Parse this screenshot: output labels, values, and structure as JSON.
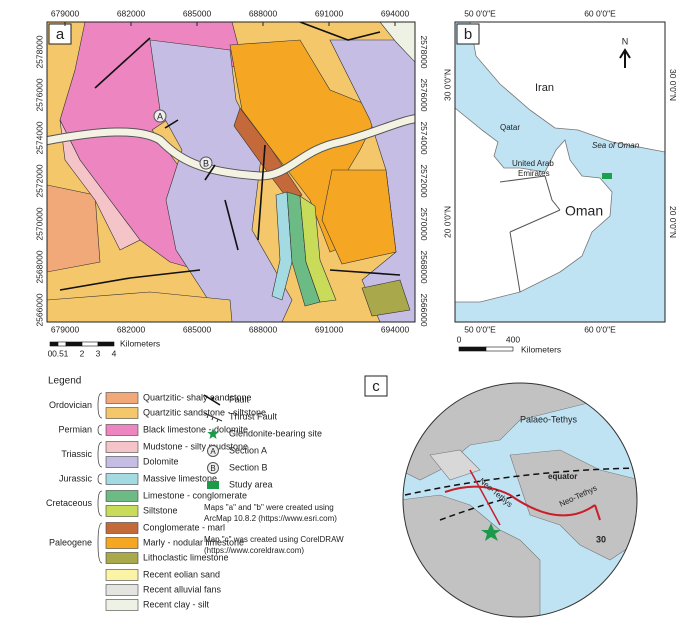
{
  "panel_a": {
    "label": "a",
    "x_ticks": [
      679000,
      682000,
      685000,
      688000,
      691000,
      694000
    ],
    "y_ticks": [
      2578000,
      2576000,
      2574000,
      2572000,
      2570000,
      2568000,
      2566000
    ],
    "sections": [
      "A",
      "B"
    ],
    "scale": {
      "ticks": [
        "0",
        "0.5",
        "1",
        "2",
        "3",
        "4"
      ],
      "unit": "Kilometers"
    }
  },
  "panel_b": {
    "label": "b",
    "lon_ticks": [
      "50 0'0\"E",
      "60 0'0\"E"
    ],
    "lat_ticks": [
      "30 0'0\"N",
      "20 0'0\"N"
    ],
    "north": "N",
    "places": {
      "iran": "Iran",
      "qatar": "Qatar",
      "uae": [
        "United Arab",
        "Emirates"
      ],
      "sea": "Sea of Oman",
      "oman": "Oman"
    },
    "scale": {
      "ticks": [
        "0",
        "400"
      ],
      "unit": "Kilometers"
    }
  },
  "panel_c": {
    "label": "c",
    "labels": {
      "palaeo": "Palaeo-Tethys",
      "equator": "equator",
      "neo1": "Neo-Tethys",
      "neo2": "Neo-Tethys",
      "lat": "30"
    }
  },
  "legend": {
    "title": "Legend",
    "groups": [
      {
        "period": "Ordovician",
        "items": [
          {
            "name": "Quartzitic- shaly sandstone",
            "color": "#f2a97a"
          },
          {
            "name": "Quartzitic sandstone - siltstone",
            "color": "#f5c76b"
          }
        ]
      },
      {
        "period": "Permian",
        "items": [
          {
            "name": "Black limestone - dolomite",
            "color": "#ec85c0"
          }
        ]
      },
      {
        "period": "Triassic",
        "items": [
          {
            "name": "Mudstone - silty mudstone",
            "color": "#f4c4c8"
          },
          {
            "name": "Dolomite",
            "color": "#c6bde4"
          }
        ]
      },
      {
        "period": "Jurassic",
        "items": [
          {
            "name": "Massive limestone",
            "color": "#a4dae2"
          }
        ]
      },
      {
        "period": "Cretaceous",
        "items": [
          {
            "name": "Limestone - conglomerate",
            "color": "#6dbb84"
          },
          {
            "name": "Siltstone",
            "color": "#c8dc5a"
          }
        ]
      },
      {
        "period": "Paleogene",
        "items": [
          {
            "name": "Conglomerate - marl",
            "color": "#c4693a"
          },
          {
            "name": "Marly - nodular limestone",
            "color": "#f5a623"
          },
          {
            "name": "Lithoclastic limestone",
            "color": "#a9a84a"
          }
        ]
      },
      {
        "items": [
          {
            "name": "Recent eolian sand",
            "color": "#fbf3a6"
          },
          {
            "name": "Recent alluvial fans",
            "color": "#e4e4e0"
          },
          {
            "name": "Recent clay - silt",
            "color": "#eef2e4"
          }
        ]
      }
    ],
    "symbols": [
      "Fault",
      "Thrust Fault",
      "Glendonite-bearing site",
      "Section A",
      "Section B",
      "Study area"
    ],
    "notes": [
      [
        "Maps \"a\" and \"b\" were created using",
        "ArcMap 10.8.2 (https://www.esri.com)"
      ],
      [
        "Map \"c\" was created using CorelDRAW",
        "(https://www.coreldraw.com)"
      ]
    ]
  }
}
